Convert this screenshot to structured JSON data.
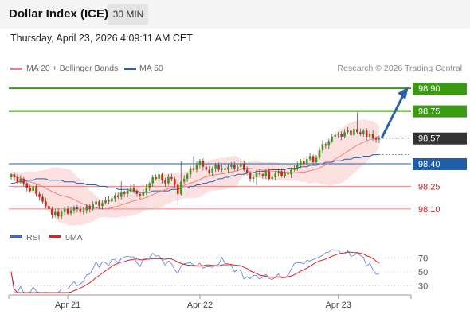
{
  "header": {
    "title": "Dollar Index (ICE)",
    "timeframe": "30 MIN"
  },
  "timestamp": "Thursday, April 23, 2026 4:09:11 AM CET",
  "legend": {
    "ma20_label": "MA 20 + Bollinger Bands",
    "ma50_label": "MA 50",
    "ma20_color": "#f08080",
    "ma50_color": "#2e5f9e",
    "credit": "Research © 2026 Trading Central"
  },
  "rsi_legend": {
    "rsi_label": "RSI",
    "ma_label": "9MA",
    "rsi_color": "#4466cc",
    "ma_color": "#dd2222"
  },
  "colors": {
    "green": "#3a9a12",
    "blue": "#1f5fa8",
    "red_level": "#f08080",
    "current": "#333333",
    "arrow": "#2e62a8"
  },
  "chart_data": [
    {
      "type": "candlestick",
      "instrument": "Dollar Index (ICE)",
      "interval": "30 MIN",
      "ylim": [
        98.02,
        98.98
      ],
      "x_ticks": [
        "Apr 21",
        "Apr 22",
        "Apr 23"
      ],
      "levels": [
        {
          "label": "98.90",
          "value": 98.9,
          "kind": "target"
        },
        {
          "label": "98.75",
          "value": 98.75,
          "kind": "target"
        },
        {
          "label": "98.57",
          "value": 98.57,
          "kind": "current"
        },
        {
          "label": "98.40",
          "value": 98.4,
          "kind": "pivot"
        },
        {
          "label": "98.25",
          "value": 98.25,
          "kind": "support"
        },
        {
          "label": "98.10",
          "value": 98.1,
          "kind": "support"
        }
      ],
      "close": [
        98.33,
        98.31,
        98.28,
        98.3,
        98.27,
        98.24,
        98.22,
        98.25,
        98.2,
        98.18,
        98.15,
        98.12,
        98.1,
        98.06,
        98.08,
        98.05,
        98.08,
        98.1,
        98.07,
        98.09,
        98.11,
        98.1,
        98.08,
        98.09,
        98.12,
        98.1,
        98.13,
        98.15,
        98.12,
        98.14,
        98.16,
        98.15,
        98.17,
        98.19,
        98.18,
        98.21,
        98.2,
        98.22,
        98.24,
        98.22,
        98.2,
        98.19,
        98.21,
        98.24,
        98.27,
        98.31,
        98.3,
        98.33,
        98.29,
        98.27,
        98.31,
        98.3,
        98.26,
        98.2,
        98.28,
        98.3,
        98.33,
        98.37,
        98.36,
        98.39,
        98.42,
        98.38,
        98.36,
        98.34,
        98.37,
        98.39,
        98.36,
        98.37,
        98.36,
        98.38,
        98.39,
        98.37,
        98.38,
        98.4,
        98.36,
        98.34,
        98.3,
        98.31,
        98.34,
        98.33,
        98.32,
        98.35,
        98.3,
        98.31,
        98.34,
        98.35,
        98.32,
        98.34,
        98.33,
        98.36,
        98.37,
        98.39,
        98.42,
        98.4,
        98.43,
        98.45,
        98.41,
        98.44,
        98.49,
        98.53,
        98.52,
        98.55,
        98.58,
        98.59,
        98.6,
        98.58,
        98.61,
        98.62,
        98.59,
        98.63,
        98.61,
        98.6,
        98.62,
        98.58,
        98.6,
        98.57,
        98.56,
        98.57
      ],
      "ma50": [
        98.27,
        98.27,
        98.28,
        98.28,
        98.28,
        98.29,
        98.29,
        98.29,
        98.3,
        98.3,
        98.3,
        98.3,
        98.29,
        98.29,
        98.29,
        98.29,
        98.29,
        98.28,
        98.28,
        98.28,
        98.28,
        98.27,
        98.27,
        98.27,
        98.26,
        98.26,
        98.26,
        98.26,
        98.25,
        98.25,
        98.25,
        98.24,
        98.24,
        98.24,
        98.23,
        98.23,
        98.23,
        98.23,
        98.22,
        98.22,
        98.22,
        98.21,
        98.21,
        98.21,
        98.21,
        98.22,
        98.22,
        98.22,
        98.22,
        98.22,
        98.22,
        98.23,
        98.23,
        98.23,
        98.24,
        98.24,
        98.24,
        98.25,
        98.25,
        98.26,
        98.26,
        98.27,
        98.27,
        98.28,
        98.28,
        98.29,
        98.3,
        98.3,
        98.31,
        98.31,
        98.32,
        98.32,
        98.33,
        98.33,
        98.33,
        98.34,
        98.34,
        98.34,
        98.35,
        98.35,
        98.35,
        98.35,
        98.36,
        98.36,
        98.36,
        98.36,
        98.36,
        98.36,
        98.37,
        98.37,
        98.37,
        98.37,
        98.38,
        98.38,
        98.38,
        98.39,
        98.39,
        98.39,
        98.4,
        98.4,
        98.41,
        98.41,
        98.41,
        98.42,
        98.42,
        98.42,
        98.43,
        98.43,
        98.43,
        98.44,
        98.44,
        98.44,
        98.45,
        98.45,
        98.45,
        98.46,
        98.46,
        98.46
      ],
      "rsi_ylim": [
        20,
        82
      ],
      "rsi_ticks": [
        70,
        50,
        30
      ],
      "forecast_end": 98.9
    }
  ]
}
